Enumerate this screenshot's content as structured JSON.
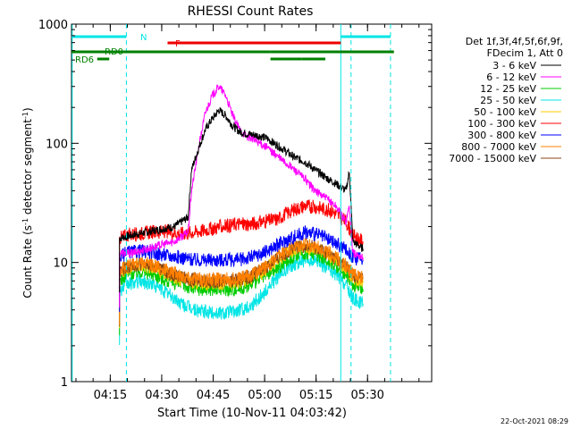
{
  "chart_data": {
    "type": "line",
    "title": "RHESSI Count Rates",
    "xlabel": "Start Time (10-Nov-11 04:03:42)",
    "ylabel": "Count Rate (s⁻¹ detector segment⁻¹)",
    "ylabel_main": "Count Rate (s",
    "ylabel_sup1": "-1",
    "ylabel_mid": " detector segment",
    "ylabel_sup2": "-1",
    "ylabel_end": ")",
    "y_scale": "log",
    "ylim": [
      1,
      1000
    ],
    "y_ticks": [
      1,
      10,
      100,
      1000
    ],
    "y_tick_labels": [
      "1",
      "10",
      "100",
      "1000"
    ],
    "x_unit": "minutes after 04:03:42",
    "xlim": [
      0,
      105
    ],
    "x_ticks": [
      11.3,
      26.3,
      41.3,
      56.3,
      71.3,
      86.3
    ],
    "x_tick_labels": [
      "04:15",
      "04:30",
      "04:45",
      "05:00",
      "05:15",
      "05:30"
    ],
    "legend_header_1": "Det 1f,3f,4f,5f,6f,9f,",
    "legend_header_2": "FDecim 1, Att 0",
    "legend_placement": "right",
    "series": [
      {
        "name": "3 - 6 keV",
        "color": "#000000",
        "points": [
          [
            14,
            16
          ],
          [
            18,
            17
          ],
          [
            22,
            18
          ],
          [
            26,
            19
          ],
          [
            30,
            20
          ],
          [
            34,
            24
          ],
          [
            35,
            60
          ],
          [
            37,
            90
          ],
          [
            39,
            130
          ],
          [
            41,
            160
          ],
          [
            43,
            190
          ],
          [
            45,
            170
          ],
          [
            47,
            140
          ],
          [
            49,
            125
          ],
          [
            51,
            120
          ],
          [
            53,
            118
          ],
          [
            55,
            115
          ],
          [
            57,
            110
          ],
          [
            59,
            100
          ],
          [
            62,
            88
          ],
          [
            65,
            76
          ],
          [
            68,
            70
          ],
          [
            71,
            60
          ],
          [
            74,
            52
          ],
          [
            77,
            46
          ],
          [
            80,
            40
          ],
          [
            81,
            58
          ],
          [
            82,
            15
          ],
          [
            85,
            13
          ]
        ]
      },
      {
        "name": "6 - 12 keV",
        "color": "#ff00ff",
        "points": [
          [
            14,
            12
          ],
          [
            18,
            12
          ],
          [
            22,
            13
          ],
          [
            26,
            14
          ],
          [
            30,
            15
          ],
          [
            34,
            18
          ],
          [
            35,
            40
          ],
          [
            37,
            90
          ],
          [
            39,
            180
          ],
          [
            41,
            250
          ],
          [
            43,
            300
          ],
          [
            45,
            250
          ],
          [
            47,
            170
          ],
          [
            49,
            130
          ],
          [
            51,
            115
          ],
          [
            53,
            108
          ],
          [
            55,
            100
          ],
          [
            57,
            92
          ],
          [
            59,
            82
          ],
          [
            62,
            70
          ],
          [
            65,
            60
          ],
          [
            68,
            50
          ],
          [
            71,
            40
          ],
          [
            74,
            35
          ],
          [
            77,
            30
          ],
          [
            80,
            22
          ],
          [
            81,
            30
          ],
          [
            82,
            12
          ],
          [
            85,
            11
          ]
        ]
      },
      {
        "name": "12 - 25 keV",
        "color": "#00cc00",
        "points": [
          [
            14,
            7
          ],
          [
            16,
            8
          ],
          [
            20,
            8.5
          ],
          [
            24,
            8
          ],
          [
            28,
            7
          ],
          [
            32,
            6.5
          ],
          [
            36,
            6
          ],
          [
            40,
            6
          ],
          [
            44,
            6
          ],
          [
            48,
            6
          ],
          [
            52,
            6.5
          ],
          [
            56,
            7.5
          ],
          [
            60,
            9
          ],
          [
            64,
            11
          ],
          [
            68,
            12
          ],
          [
            72,
            11.5
          ],
          [
            76,
            10
          ],
          [
            80,
            8
          ],
          [
            82,
            6.5
          ],
          [
            85,
            6
          ]
        ]
      },
      {
        "name": "25 - 50 keV",
        "color": "#00e5e5",
        "points": [
          [
            14,
            5.8
          ],
          [
            16,
            6.5
          ],
          [
            20,
            7
          ],
          [
            24,
            6.5
          ],
          [
            28,
            5.5
          ],
          [
            32,
            4.5
          ],
          [
            36,
            4
          ],
          [
            40,
            3.8
          ],
          [
            44,
            3.8
          ],
          [
            48,
            3.9
          ],
          [
            52,
            4.3
          ],
          [
            56,
            5.5
          ],
          [
            60,
            7.5
          ],
          [
            64,
            9.5
          ],
          [
            68,
            10.5
          ],
          [
            72,
            10
          ],
          [
            76,
            8.5
          ],
          [
            80,
            6.5
          ],
          [
            82,
            5
          ],
          [
            85,
            4.5
          ]
        ]
      },
      {
        "name": "50 - 100 keV",
        "color": "#ffcc00",
        "points": [
          [
            14,
            8
          ],
          [
            16,
            9
          ],
          [
            20,
            9.5
          ],
          [
            24,
            9
          ],
          [
            28,
            8
          ],
          [
            32,
            7.2
          ],
          [
            36,
            6.8
          ],
          [
            40,
            6.7
          ],
          [
            44,
            6.7
          ],
          [
            48,
            6.8
          ],
          [
            52,
            7.3
          ],
          [
            56,
            8.5
          ],
          [
            60,
            10.5
          ],
          [
            64,
            12.5
          ],
          [
            68,
            13.5
          ],
          [
            72,
            13
          ],
          [
            76,
            11
          ],
          [
            80,
            9
          ],
          [
            82,
            7.5
          ],
          [
            85,
            7
          ]
        ]
      },
      {
        "name": "100 - 300 keV",
        "color": "#ff0000",
        "points": [
          [
            14,
            16
          ],
          [
            16,
            17
          ],
          [
            20,
            17.5
          ],
          [
            24,
            18
          ],
          [
            28,
            18
          ],
          [
            32,
            17.5
          ],
          [
            36,
            18
          ],
          [
            40,
            19
          ],
          [
            44,
            20
          ],
          [
            48,
            21
          ],
          [
            52,
            21
          ],
          [
            56,
            22
          ],
          [
            60,
            23
          ],
          [
            62,
            25
          ],
          [
            64,
            27
          ],
          [
            68,
            30
          ],
          [
            72,
            29
          ],
          [
            76,
            27
          ],
          [
            80,
            22
          ],
          [
            82,
            17
          ],
          [
            85,
            15
          ]
        ]
      },
      {
        "name": "300 - 800 keV",
        "color": "#0000ff",
        "points": [
          [
            14,
            11
          ],
          [
            16,
            12
          ],
          [
            20,
            12.5
          ],
          [
            24,
            12
          ],
          [
            28,
            11.5
          ],
          [
            32,
            11
          ],
          [
            36,
            10.5
          ],
          [
            40,
            10.5
          ],
          [
            44,
            10.5
          ],
          [
            48,
            10.5
          ],
          [
            52,
            11
          ],
          [
            56,
            12
          ],
          [
            60,
            14
          ],
          [
            64,
            16
          ],
          [
            68,
            18
          ],
          [
            72,
            17
          ],
          [
            76,
            15
          ],
          [
            80,
            13
          ],
          [
            82,
            11
          ],
          [
            85,
            10.5
          ]
        ]
      },
      {
        "name": "800 - 7000 keV",
        "color": "#ff8000",
        "points": [
          [
            14,
            8.5
          ],
          [
            16,
            9.5
          ],
          [
            20,
            10
          ],
          [
            24,
            9.5
          ],
          [
            28,
            8.5
          ],
          [
            32,
            7.8
          ],
          [
            36,
            7.3
          ],
          [
            40,
            7.2
          ],
          [
            44,
            7.2
          ],
          [
            48,
            7.3
          ],
          [
            52,
            7.8
          ],
          [
            56,
            9
          ],
          [
            60,
            11
          ],
          [
            64,
            13
          ],
          [
            68,
            14
          ],
          [
            72,
            13.5
          ],
          [
            76,
            11.5
          ],
          [
            80,
            9.5
          ],
          [
            82,
            8
          ],
          [
            85,
            7.5
          ]
        ]
      },
      {
        "name": "7000 - 15000 keV",
        "color": "#8b4513",
        "points": [
          [
            14,
            8.3
          ],
          [
            16,
            9.2
          ],
          [
            20,
            9.7
          ],
          [
            24,
            9.3
          ],
          [
            28,
            8.3
          ],
          [
            32,
            7.5
          ],
          [
            36,
            7.1
          ],
          [
            40,
            7
          ],
          [
            44,
            7
          ],
          [
            48,
            7.1
          ],
          [
            52,
            7.6
          ],
          [
            56,
            8.8
          ],
          [
            60,
            10.8
          ],
          [
            64,
            12.8
          ],
          [
            68,
            13.8
          ],
          [
            72,
            13.2
          ],
          [
            76,
            11.2
          ],
          [
            80,
            9.2
          ],
          [
            82,
            7.8
          ],
          [
            85,
            7.3
          ]
        ]
      }
    ],
    "state_bars": [
      {
        "label": "N",
        "color": "#00e5e5",
        "segments": [
          [
            0,
            16
          ],
          [
            78.5,
            93
          ]
        ]
      },
      {
        "label": "F",
        "color": "#ee0000",
        "segments": [
          [
            28,
            78.5
          ]
        ]
      },
      {
        "label": "RD0",
        "color": "#008000",
        "segments": [
          [
            0,
            58
          ],
          [
            58,
            94
          ]
        ]
      },
      {
        "label": "RD6",
        "color": "#008000",
        "segments": [
          [
            7.5,
            11
          ],
          [
            58,
            67
          ],
          [
            67,
            74
          ]
        ]
      }
    ],
    "vlines": [
      {
        "x": 0.2,
        "color": "#00e5e5",
        "style": "solid"
      },
      {
        "x": 16,
        "color": "#00e5e5",
        "style": "dashed"
      },
      {
        "x": 78.5,
        "color": "#00e5e5",
        "style": "solid"
      },
      {
        "x": 81.5,
        "color": "#00e5e5",
        "style": "dashed"
      },
      {
        "x": 93,
        "color": "#00e5e5",
        "style": "dashed"
      }
    ],
    "timestamp": "22-Oct-2021 08:29"
  }
}
